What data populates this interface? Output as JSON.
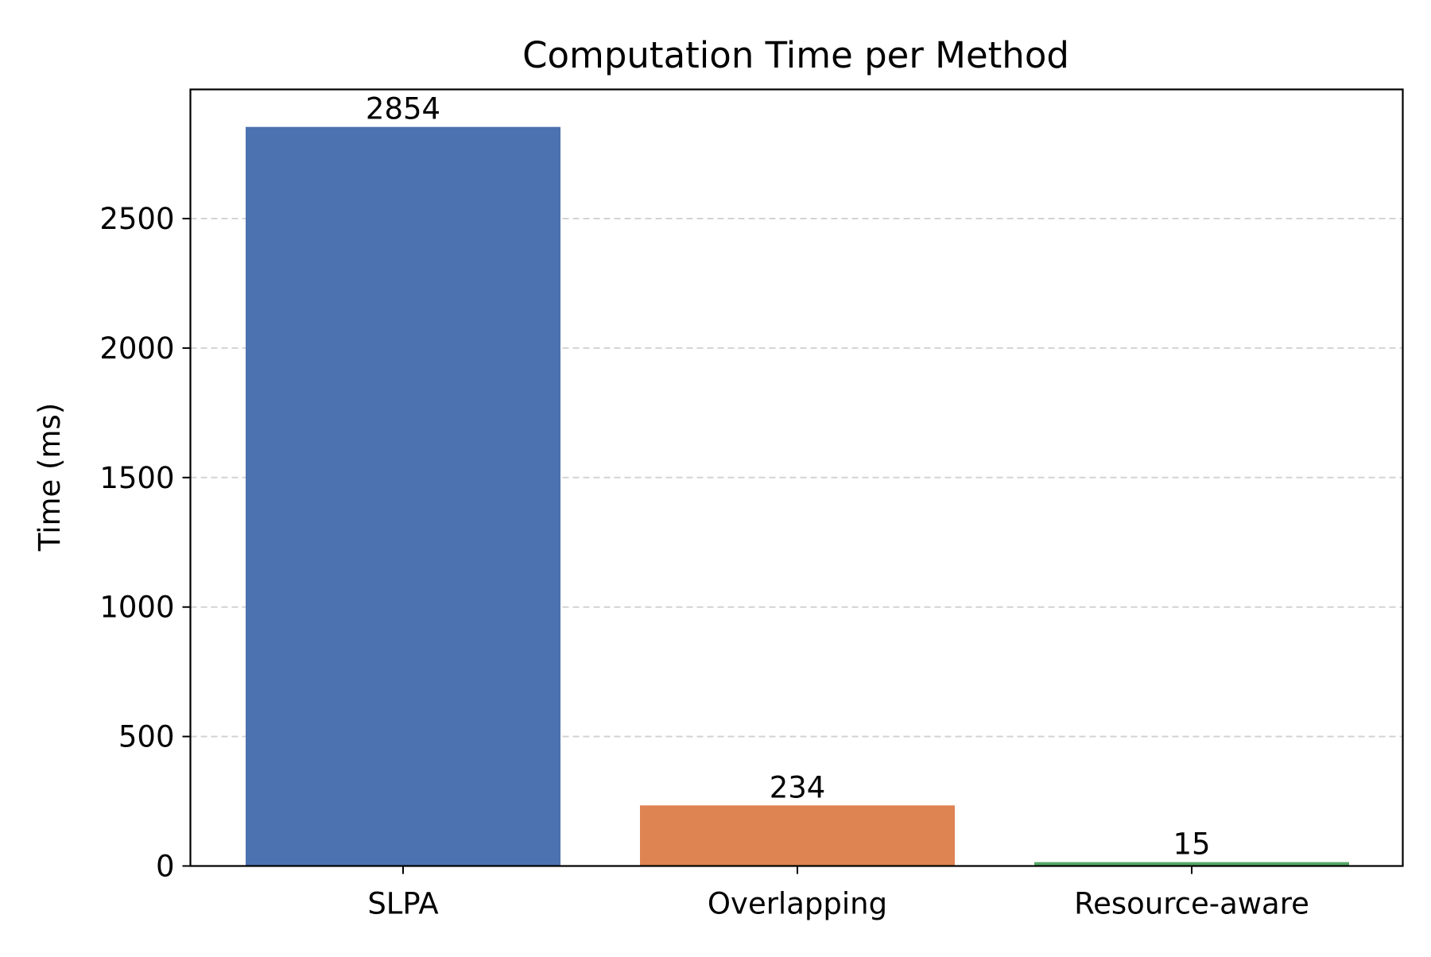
{
  "chart_data": {
    "type": "bar",
    "title": "Computation Time per Method",
    "xlabel": "",
    "ylabel": "Time (ms)",
    "categories": [
      "SLPA",
      "Overlapping",
      "Resource-aware"
    ],
    "values": [
      2854,
      234,
      15
    ],
    "value_labels": [
      "2854",
      "234",
      "15"
    ],
    "colors": [
      "#4c72b0",
      "#dd8452",
      "#55a868"
    ],
    "ylim": [
      0,
      3000
    ],
    "yticks": [
      0,
      500,
      1000,
      1500,
      2000,
      2500
    ],
    "ytick_labels": [
      "0",
      "500",
      "1000",
      "1500",
      "2000",
      "2500"
    ],
    "grid": "y-dashed",
    "legend": "none"
  }
}
